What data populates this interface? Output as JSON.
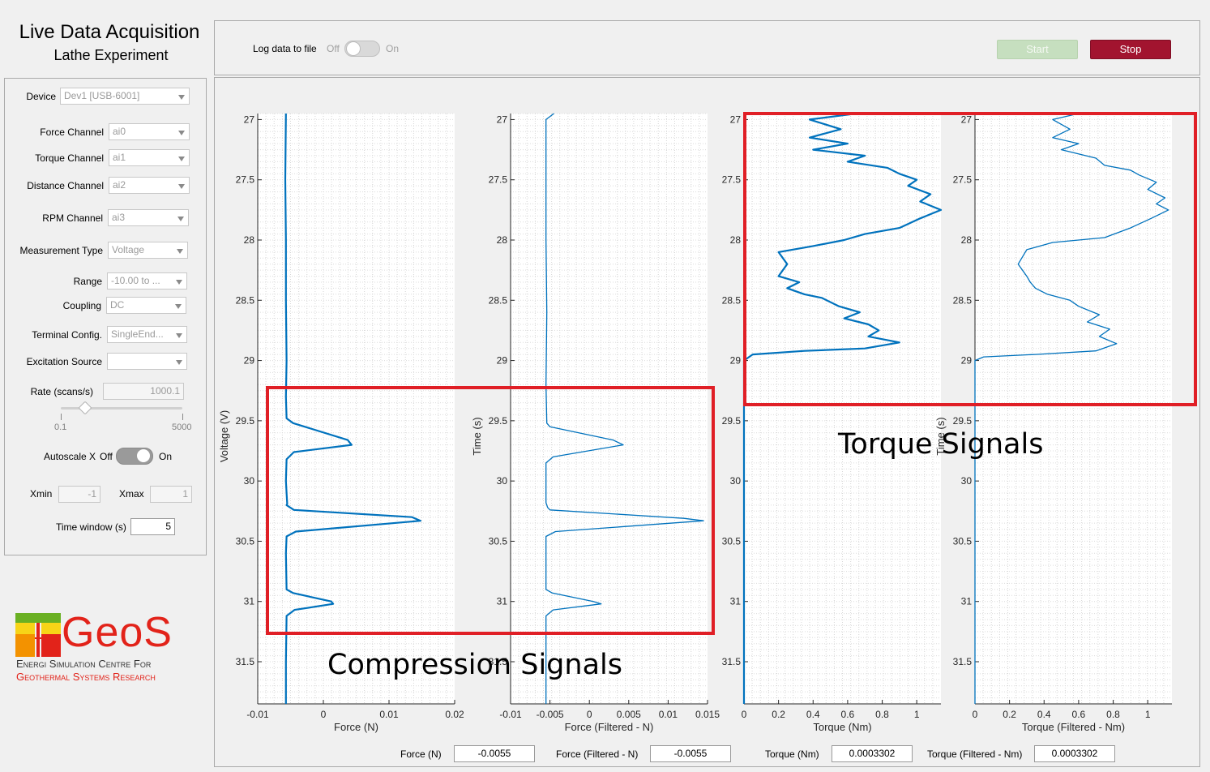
{
  "app": {
    "title": "Live Data Acquisition",
    "subtitle": "Lathe Experiment"
  },
  "toolbar": {
    "log_label": "Log data to file",
    "log_off": "Off",
    "log_on": "On",
    "log_state": "Off",
    "start_label": "Start",
    "stop_label": "Stop"
  },
  "settings": {
    "device": {
      "label": "Device",
      "value": "Dev1 [USB-6001]"
    },
    "force_channel": {
      "label": "Force Channel",
      "value": "ai0"
    },
    "torque_channel": {
      "label": "Torque Channel",
      "value": "ai1"
    },
    "distance_channel": {
      "label": "Distance Channel",
      "value": "ai2"
    },
    "rpm_channel": {
      "label": "RPM Channel",
      "value": "ai3"
    },
    "measurement_type": {
      "label": "Measurement Type",
      "value": "Voltage"
    },
    "range": {
      "label": "Range",
      "value": "-10.00 to ..."
    },
    "coupling": {
      "label": "Coupling",
      "value": "DC"
    },
    "terminal_config": {
      "label": "Terminal Config.",
      "value": "SingleEnd..."
    },
    "excitation_source": {
      "label": "Excitation Source",
      "value": ""
    },
    "rate": {
      "label": "Rate (scans/s)",
      "value": "1000.1",
      "slider_min": "0.1",
      "slider_max": "5000",
      "slider_fraction": 0.0
    },
    "autoscale": {
      "label": "Autoscale X",
      "off": "Off",
      "on": "On",
      "state": "Off"
    },
    "xmin": {
      "label": "Xmin",
      "value": "-1"
    },
    "xmax": {
      "label": "Xmax",
      "value": "1"
    },
    "time_window": {
      "label": "Time window (s)",
      "value": "5"
    }
  },
  "logo": {
    "name": "GeoS",
    "line1": "Energi Simulation Centre For",
    "line2": "Geothermal Systems Research",
    "colors": {
      "red": "#e2231a",
      "green": "#6ab023",
      "yellow": "#f7d417",
      "orange": "#f39200"
    }
  },
  "annotations": {
    "compression": "Compression Signals",
    "torque": "Torque Signals",
    "box_color": "#e01f26"
  },
  "readouts": [
    {
      "label": "Force (N)",
      "value": "-0.0055"
    },
    {
      "label": "Force (Filtered - N)",
      "value": "-0.0055"
    },
    {
      "label": "Torque (Nm)",
      "value": "0.0003302"
    },
    {
      "label": "Torque (Filtered - Nm)",
      "value": "0.0003302"
    }
  ],
  "chart_data": [
    {
      "type": "line",
      "xlabel": "Force (N)",
      "ylabel": "Voltage (V)",
      "xlim": [
        -0.01,
        0.02
      ],
      "ylim": [
        31.85,
        26.95
      ],
      "xticks": [
        "-0.01",
        "0",
        "0.01",
        "0.02"
      ],
      "yticks": [
        "27",
        "27.5",
        "28",
        "28.5",
        "29",
        "29.5",
        "30",
        "30.5",
        "31",
        "31.5"
      ],
      "grid": true,
      "color": "#0072bd",
      "series": [
        {
          "x": [
            -0.0057,
            -0.0058,
            -0.0057,
            -0.0057,
            -0.0056,
            -0.0057,
            -0.0056,
            -0.0046,
            0.0037,
            0.0043,
            -0.0045,
            -0.0056,
            -0.0057,
            -0.0056,
            -0.0055,
            -0.0056,
            -0.0045,
            0.0135,
            0.0148,
            -0.0042,
            -0.0056,
            -0.0057,
            -0.0056,
            -0.0046,
            0.0012,
            0.0015,
            -0.0044,
            -0.0056,
            -0.0057,
            -0.0057
          ],
          "y": [
            26.95,
            27.5,
            28.0,
            28.5,
            29.0,
            29.3,
            29.48,
            29.52,
            29.66,
            29.7,
            29.76,
            29.82,
            30.0,
            30.1,
            30.19,
            30.2,
            30.24,
            30.3,
            30.33,
            30.42,
            30.46,
            30.6,
            30.9,
            30.93,
            31.0,
            31.02,
            31.07,
            31.12,
            31.5,
            31.85
          ]
        }
      ]
    },
    {
      "type": "line",
      "xlabel": "Force (Filtered - N)",
      "ylabel": "Time (s)",
      "xlim": [
        -0.01,
        0.015
      ],
      "ylim": [
        31.85,
        26.95
      ],
      "xticks": [
        "-0.01",
        "-0.005",
        "0",
        "0.005",
        "0.01",
        "0.015"
      ],
      "yticks": [
        "27",
        "27.5",
        "28",
        "28.5",
        "29",
        "29.5",
        "30",
        "30.5",
        "31",
        "31.5"
      ],
      "grid": true,
      "color": "#0072bd",
      "series": [
        {
          "x": [
            -0.0045,
            -0.0055,
            -0.0055,
            -0.0055,
            -0.0054,
            -0.0055,
            -0.0054,
            -0.005,
            0.003,
            0.0043,
            -0.0046,
            -0.0055,
            -0.0055,
            -0.0053,
            -0.005,
            0.012,
            0.0145,
            -0.0043,
            -0.0055,
            -0.0055,
            -0.0047,
            0.0005,
            0.0015,
            -0.0046,
            -0.0055,
            -0.0055
          ],
          "y": [
            26.95,
            27.0,
            27.5,
            28.0,
            28.6,
            29.2,
            29.52,
            29.55,
            29.66,
            29.7,
            29.8,
            29.85,
            30.18,
            30.22,
            30.24,
            30.31,
            30.33,
            30.42,
            30.46,
            30.9,
            30.93,
            31.0,
            31.02,
            31.07,
            31.12,
            31.85
          ]
        }
      ]
    },
    {
      "type": "line",
      "xlabel": "Torque (Nm)",
      "ylabel": "",
      "xlim": [
        0,
        1.14
      ],
      "ylim": [
        31.85,
        26.95
      ],
      "xticks": [
        "0",
        "0.2",
        "0.4",
        "0.6",
        "0.8",
        "1"
      ],
      "yticks": [
        "27",
        "27.5",
        "28",
        "28.5",
        "29",
        "29.5",
        "30",
        "30.5",
        "31",
        "31.5"
      ],
      "grid": true,
      "color": "#0072bd",
      "series": [
        {
          "x": [
            0.65,
            0.38,
            0.56,
            0.38,
            0.6,
            0.4,
            0.7,
            0.6,
            0.83,
            0.9,
            1.0,
            0.95,
            1.08,
            1.02,
            1.14,
            1.02,
            0.9,
            0.7,
            0.58,
            0.4,
            0.2,
            0.25,
            0.2,
            0.32,
            0.25,
            0.35,
            0.45,
            0.55,
            0.67,
            0.58,
            0.72,
            0.78,
            0.72,
            0.9,
            0.7,
            0.35,
            0.05,
            0.0,
            0.0,
            0.0
          ],
          "y": [
            26.95,
            27.0,
            27.08,
            27.15,
            27.2,
            27.25,
            27.3,
            27.35,
            27.4,
            27.45,
            27.5,
            27.55,
            27.62,
            27.68,
            27.75,
            27.82,
            27.9,
            27.95,
            28.0,
            28.05,
            28.1,
            28.2,
            28.3,
            28.35,
            28.4,
            28.45,
            28.48,
            28.55,
            28.6,
            28.65,
            28.7,
            28.75,
            28.8,
            28.85,
            28.9,
            28.92,
            28.95,
            29.0,
            30.0,
            31.85
          ]
        }
      ]
    },
    {
      "type": "line",
      "xlabel": "Torque (Filtered - Nm)",
      "ylabel": "Time (s)",
      "xlim": [
        0,
        1.14
      ],
      "ylim": [
        31.85,
        26.95
      ],
      "xticks": [
        "0",
        "0.2",
        "0.4",
        "0.6",
        "0.8",
        "1"
      ],
      "yticks": [
        "27",
        "27.5",
        "28",
        "28.5",
        "29",
        "29.5",
        "30",
        "30.5",
        "31",
        "31.5"
      ],
      "grid": true,
      "color": "#0072bd",
      "series": [
        {
          "x": [
            0.6,
            0.45,
            0.55,
            0.45,
            0.6,
            0.5,
            0.7,
            0.75,
            0.9,
            0.95,
            1.05,
            1.0,
            1.1,
            1.05,
            1.12,
            1.02,
            0.9,
            0.75,
            0.45,
            0.3,
            0.25,
            0.3,
            0.32,
            0.35,
            0.42,
            0.55,
            0.6,
            0.72,
            0.65,
            0.78,
            0.72,
            0.82,
            0.7,
            0.35,
            0.05,
            0.0,
            0.0,
            0.0
          ],
          "y": [
            26.95,
            27.0,
            27.08,
            27.15,
            27.2,
            27.25,
            27.32,
            27.38,
            27.42,
            27.46,
            27.52,
            27.58,
            27.65,
            27.7,
            27.75,
            27.82,
            27.9,
            27.98,
            28.02,
            28.08,
            28.2,
            28.3,
            28.35,
            28.4,
            28.45,
            28.5,
            28.55,
            28.62,
            28.68,
            28.74,
            28.8,
            28.86,
            28.92,
            28.95,
            28.97,
            29.0,
            30.0,
            31.85
          ]
        }
      ]
    }
  ]
}
